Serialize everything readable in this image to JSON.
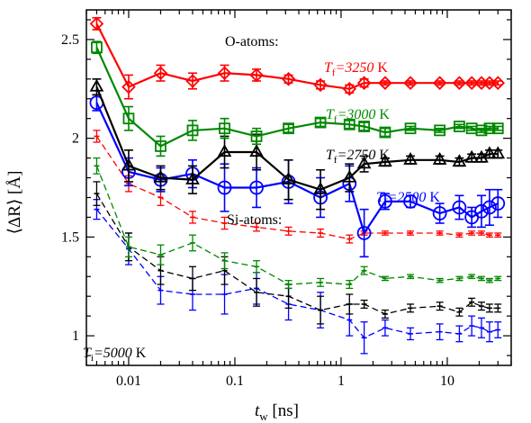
{
  "chart_data": {
    "type": "line",
    "x_scale": "log",
    "xlim": [
      0.004,
      40
    ],
    "ylim": [
      0.85,
      2.65
    ],
    "xlabel": "t_w [ns]",
    "xlabel_main": "t",
    "xlabel_sub": "w",
    "xlabel_unit": " [ns]",
    "ylabel": "⟨ΔR⟩ [Å]",
    "x_ticks": [
      {
        "value": 0.01,
        "label": "0.01"
      },
      {
        "value": 0.1,
        "label": "0.1"
      },
      {
        "value": 1,
        "label": "1"
      },
      {
        "value": 10,
        "label": "10"
      }
    ],
    "y_ticks": [
      {
        "value": 1,
        "label": "1"
      },
      {
        "value": 1.5,
        "label": "1.5"
      },
      {
        "value": 2,
        "label": "2"
      },
      {
        "value": 2.5,
        "label": "2.5"
      }
    ],
    "x": [
      0.005,
      0.01,
      0.02,
      0.04,
      0.08,
      0.16,
      0.32,
      0.64,
      1.2,
      1.65,
      2.6,
      4.5,
      8.5,
      13,
      17,
      21,
      25,
      30
    ],
    "annotations": {
      "o_atoms": "O-atoms:",
      "si_atoms": "Si-atoms:",
      "ti_main": "T",
      "ti_sub": "i",
      "ti_value": "=5000",
      "ti_unit": " K"
    },
    "series": [
      {
        "group": "O-atoms",
        "color": "#ff0000",
        "marker": "diamond",
        "style": "solid",
        "label_main": "T",
        "label_sub": "f",
        "label_value": "=3250",
        "label_unit": " K",
        "values": [
          2.58,
          2.26,
          2.33,
          2.29,
          2.33,
          2.32,
          2.3,
          2.27,
          2.25,
          2.28,
          2.28,
          2.28,
          2.28,
          2.28,
          2.28,
          2.28,
          2.28,
          2.28
        ],
        "errors": [
          0.03,
          0.06,
          0.04,
          0.04,
          0.04,
          0.03,
          0.02,
          0.02,
          0.02,
          0.02,
          0.01,
          0.01,
          0.01,
          0.01,
          0.01,
          0.01,
          0.01,
          0.01
        ]
      },
      {
        "group": "O-atoms",
        "color": "#008800",
        "marker": "square",
        "style": "solid",
        "label_main": "T",
        "label_sub": "f",
        "label_value": "=3000",
        "label_unit": " K",
        "values": [
          2.46,
          2.1,
          1.96,
          2.04,
          2.05,
          2.01,
          2.05,
          2.08,
          2.07,
          2.06,
          2.03,
          2.05,
          2.04,
          2.06,
          2.05,
          2.04,
          2.05,
          2.05
        ],
        "errors": [
          0.03,
          0.06,
          0.05,
          0.05,
          0.05,
          0.04,
          0.02,
          0.02,
          0.02,
          0.02,
          0.02,
          0.01,
          0.01,
          0.01,
          0.01,
          0.01,
          0.01,
          0.01
        ]
      },
      {
        "group": "O-atoms",
        "color": "#000000",
        "marker": "triangle",
        "style": "solid",
        "label_main": "T",
        "label_sub": "f",
        "label_value": "=2750",
        "label_unit": " K",
        "values": [
          2.26,
          1.86,
          1.8,
          1.79,
          1.93,
          1.93,
          1.79,
          1.74,
          1.8,
          1.87,
          1.88,
          1.89,
          1.89,
          1.88,
          1.9,
          1.9,
          1.92,
          1.92
        ],
        "errors": [
          0.04,
          0.08,
          0.06,
          0.07,
          0.08,
          0.09,
          0.1,
          0.1,
          0.07,
          0.04,
          0.02,
          0.02,
          0.02,
          0.02,
          0.02,
          0.02,
          0.02,
          0.02
        ]
      },
      {
        "group": "O-atoms",
        "color": "#0000ff",
        "marker": "circle",
        "style": "solid",
        "label_main": "T",
        "label_sub": "f",
        "label_value": "=2500",
        "label_unit": " K",
        "values": [
          2.18,
          1.83,
          1.79,
          1.82,
          1.75,
          1.75,
          1.78,
          1.7,
          1.77,
          1.52,
          1.68,
          1.68,
          1.62,
          1.65,
          1.6,
          1.63,
          1.65,
          1.67
        ],
        "errors": [
          0.04,
          0.07,
          0.06,
          0.07,
          0.12,
          0.1,
          0.11,
          0.1,
          0.09,
          0.12,
          0.04,
          0.03,
          0.05,
          0.06,
          0.05,
          0.08,
          0.09,
          0.07
        ]
      },
      {
        "group": "Si-atoms",
        "color": "#ff0000",
        "marker": "bar",
        "style": "dashed",
        "values": [
          2.01,
          1.77,
          1.7,
          1.6,
          1.57,
          1.55,
          1.53,
          1.52,
          1.49,
          1.52,
          1.52,
          1.52,
          1.52,
          1.51,
          1.52,
          1.52,
          1.51,
          1.51
        ],
        "errors": [
          0.03,
          0.04,
          0.04,
          0.03,
          0.03,
          0.02,
          0.02,
          0.02,
          0.02,
          0.01,
          0.01,
          0.01,
          0.01,
          0.01,
          0.01,
          0.01,
          0.01,
          0.01
        ]
      },
      {
        "group": "Si-atoms",
        "color": "#008800",
        "marker": "bar",
        "style": "dashed",
        "values": [
          1.86,
          1.45,
          1.41,
          1.47,
          1.38,
          1.35,
          1.26,
          1.27,
          1.26,
          1.33,
          1.29,
          1.3,
          1.28,
          1.29,
          1.3,
          1.29,
          1.28,
          1.29
        ],
        "errors": [
          0.04,
          0.05,
          0.05,
          0.04,
          0.04,
          0.03,
          0.02,
          0.02,
          0.02,
          0.02,
          0.01,
          0.01,
          0.01,
          0.01,
          0.01,
          0.01,
          0.01,
          0.01
        ]
      },
      {
        "group": "Si-atoms",
        "color": "#000000",
        "marker": "bar",
        "style": "dashed",
        "values": [
          1.72,
          1.45,
          1.33,
          1.29,
          1.33,
          1.22,
          1.2,
          1.13,
          1.16,
          1.16,
          1.11,
          1.14,
          1.15,
          1.12,
          1.17,
          1.15,
          1.14,
          1.14
        ],
        "errors": [
          0.06,
          0.07,
          0.07,
          0.06,
          0.07,
          0.07,
          0.06,
          0.07,
          0.05,
          0.02,
          0.02,
          0.02,
          0.02,
          0.02,
          0.02,
          0.02,
          0.02,
          0.02
        ]
      },
      {
        "group": "Si-atoms",
        "color": "#0000ff",
        "marker": "bar",
        "style": "dashed",
        "values": [
          1.64,
          1.44,
          1.23,
          1.21,
          1.21,
          1.24,
          1.16,
          1.13,
          1.08,
          0.99,
          1.04,
          1.01,
          1.02,
          1.01,
          1.05,
          1.04,
          1.02,
          1.03
        ],
        "errors": [
          0.05,
          0.08,
          0.07,
          0.08,
          0.1,
          0.08,
          0.08,
          0.09,
          0.08,
          0.08,
          0.04,
          0.03,
          0.04,
          0.04,
          0.05,
          0.05,
          0.05,
          0.04
        ]
      }
    ]
  }
}
